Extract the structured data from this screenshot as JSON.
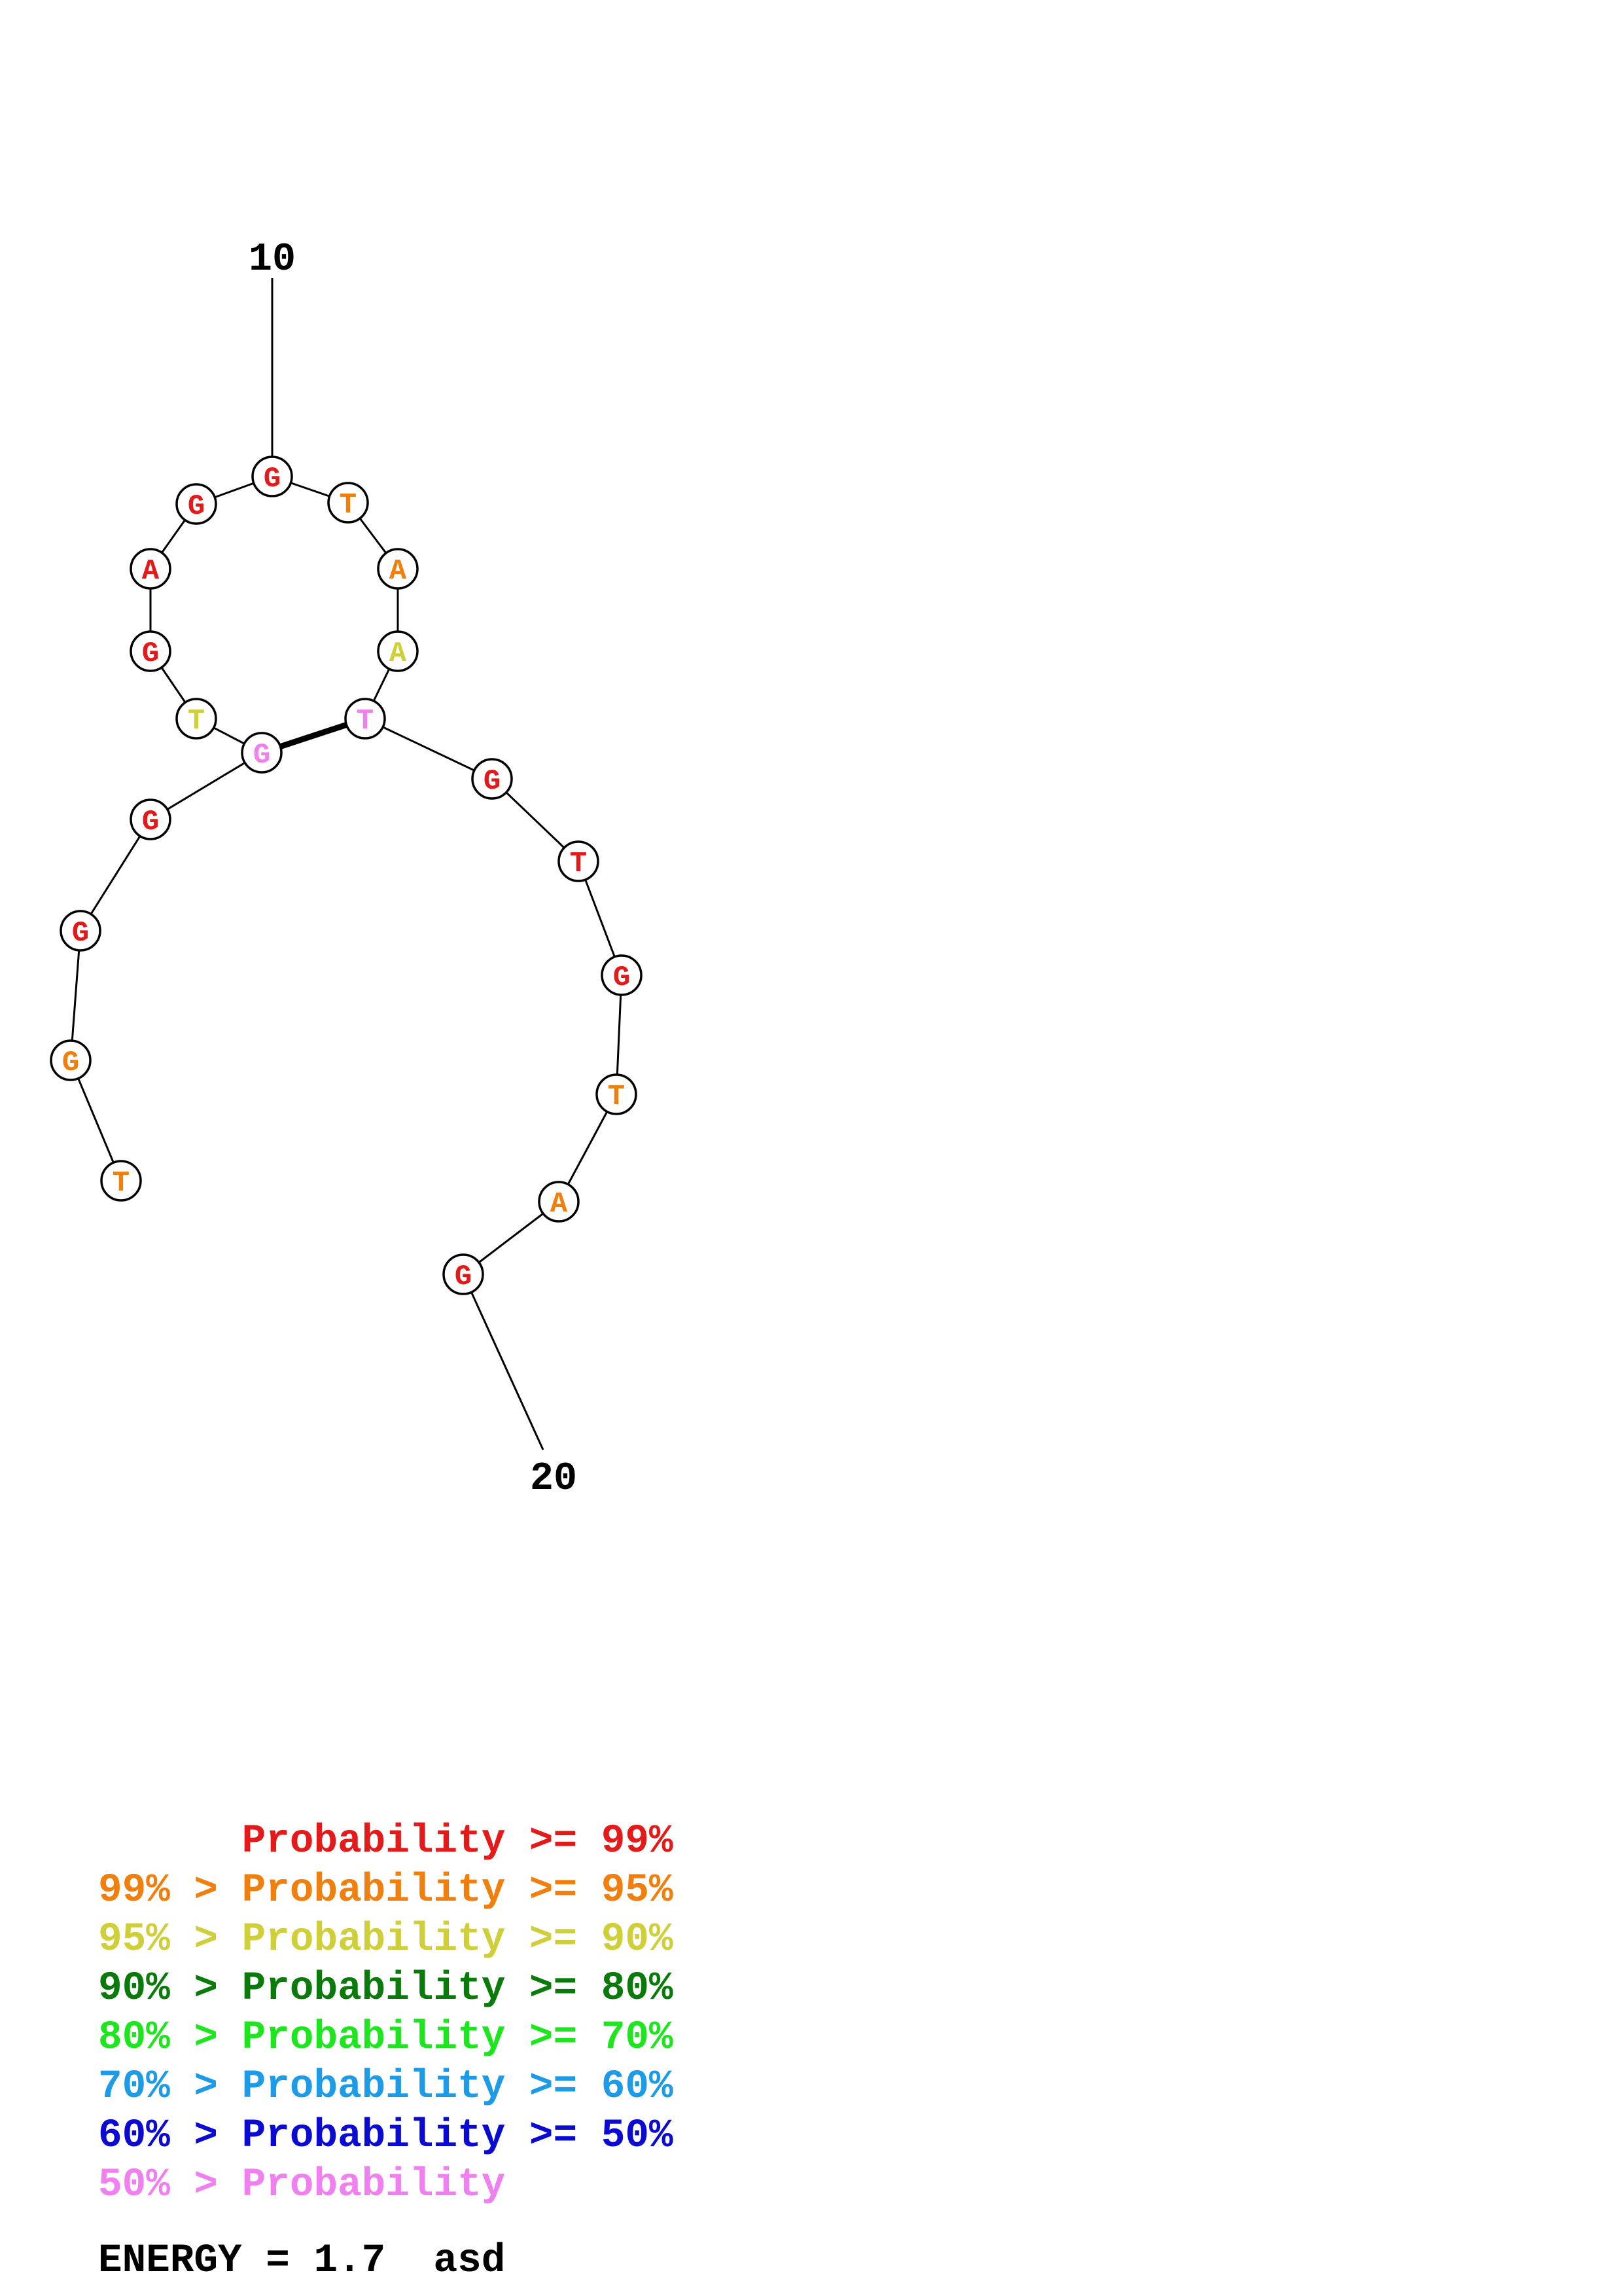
{
  "structure": {
    "sequence_order": [
      "T",
      "G",
      "G",
      "G",
      "G",
      "T",
      "G",
      "A",
      "G",
      "G",
      "T",
      "A",
      "A",
      "T",
      "G",
      "T",
      "G",
      "T",
      "A",
      "G"
    ],
    "nucleotides": [
      {
        "letter": "T",
        "color": "#f07f0e"
      },
      {
        "letter": "G",
        "color": "#f07f0e"
      },
      {
        "letter": "G",
        "color": "#e41a1a"
      },
      {
        "letter": "G",
        "color": "#e41a1a"
      },
      {
        "letter": "G",
        "color": "#f080f0"
      },
      {
        "letter": "T",
        "color": "#cfcf3a"
      },
      {
        "letter": "G",
        "color": "#e41a1a"
      },
      {
        "letter": "A",
        "color": "#e41a1a"
      },
      {
        "letter": "G",
        "color": "#e41a1a"
      },
      {
        "letter": "G",
        "color": "#e41a1a"
      },
      {
        "letter": "T",
        "color": "#f07f0e"
      },
      {
        "letter": "A",
        "color": "#f07f0e"
      },
      {
        "letter": "A",
        "color": "#cfcf3a"
      },
      {
        "letter": "T",
        "color": "#f080f0"
      },
      {
        "letter": "G",
        "color": "#e41a1a"
      },
      {
        "letter": "T",
        "color": "#e41a1a"
      },
      {
        "letter": "G",
        "color": "#e41a1a"
      },
      {
        "letter": "T",
        "color": "#f07f0e"
      },
      {
        "letter": "A",
        "color": "#f07f0e"
      },
      {
        "letter": "G",
        "color": "#e41a1a"
      }
    ],
    "base_pairs": [
      [
        5,
        14
      ]
    ],
    "position_labels": [
      {
        "index": 10,
        "text": "10"
      },
      {
        "index": 20,
        "text": "20"
      }
    ]
  },
  "legend": [
    {
      "prefix": "    ",
      "middle": "Probability",
      "suffix": " >= 99%",
      "prefix_text": "",
      "color": "#e41a1a"
    },
    {
      "prefix_text": "99% > ",
      "middle": "Probability",
      "suffix": " >= 95%",
      "color": "#f07f0e"
    },
    {
      "prefix_text": "95% > ",
      "middle": "Probability",
      "suffix": " >= 90%",
      "color": "#cfcf3a"
    },
    {
      "prefix_text": "90% > ",
      "middle": "Probability",
      "suffix": " >= 80%",
      "color": "#0a7a0a"
    },
    {
      "prefix_text": "80% > ",
      "middle": "Probability",
      "suffix": " >= 70%",
      "color": "#1ee61e"
    },
    {
      "prefix_text": "70% > ",
      "middle": "Probability",
      "suffix": " >= 60%",
      "color": "#1e9be6"
    },
    {
      "prefix_text": "60% > ",
      "middle": "Probability",
      "suffix": " >= 50%",
      "color": "#0a0ad2"
    },
    {
      "prefix_text": "50% > ",
      "middle": "Probability",
      "suffix": "",
      "color": "#f080f0"
    }
  ],
  "energy": {
    "text": "ENERGY = 1.7  asd"
  }
}
